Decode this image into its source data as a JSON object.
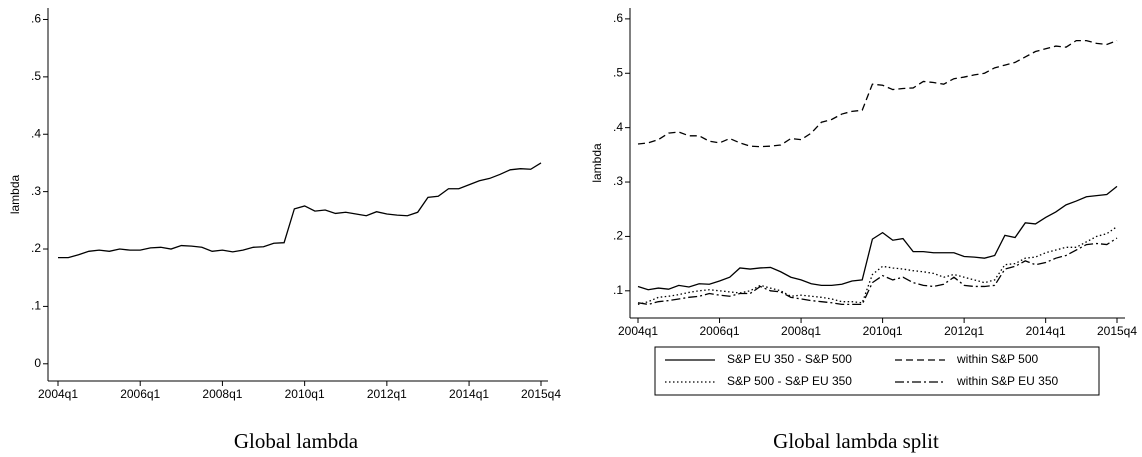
{
  "chart_data": [
    {
      "type": "line",
      "title": "Global lambda",
      "ylabel": "lambda",
      "color": "#000000",
      "categories": [
        "2004q1",
        null,
        null,
        null,
        null,
        null,
        null,
        null,
        "2006q1",
        null,
        null,
        null,
        null,
        null,
        null,
        null,
        "2008q1",
        null,
        null,
        null,
        null,
        null,
        null,
        null,
        "2010q1",
        null,
        null,
        null,
        null,
        null,
        null,
        null,
        "2012q1",
        null,
        null,
        null,
        null,
        null,
        null,
        null,
        "2014q1",
        null,
        null,
        null,
        null,
        null,
        null,
        "2015q4"
      ],
      "values": [
        0.185,
        0.185,
        0.19,
        0.196,
        0.198,
        0.196,
        0.2,
        0.198,
        0.198,
        0.202,
        0.203,
        0.2,
        0.206,
        0.205,
        0.203,
        0.196,
        0.198,
        0.195,
        0.198,
        0.203,
        0.204,
        0.21,
        0.211,
        0.27,
        0.275,
        0.266,
        0.268,
        0.262,
        0.264,
        0.261,
        0.258,
        0.265,
        0.261,
        0.259,
        0.258,
        0.264,
        0.29,
        0.292,
        0.305,
        0.305,
        0.312,
        0.319,
        0.323,
        0.33,
        0.338,
        0.34,
        0.339,
        0.35
      ],
      "ylim": [
        -0.03,
        0.62
      ],
      "yticks": [
        0,
        {
          "value": 0.1,
          "label": ".1"
        },
        {
          "value": 0.2,
          "label": ".2"
        },
        {
          "value": 0.3,
          "label": ".3"
        },
        {
          "value": 0.4,
          "label": ".4"
        },
        {
          "value": 0.5,
          "label": ".5"
        },
        {
          "value": 0.6,
          "label": ".6"
        }
      ]
    },
    {
      "type": "line",
      "title": "Global lambda split",
      "ylabel": "lambda",
      "categories": [
        "2004q1",
        null,
        null,
        null,
        null,
        null,
        null,
        null,
        "2006q1",
        null,
        null,
        null,
        null,
        null,
        null,
        null,
        "2008q1",
        null,
        null,
        null,
        null,
        null,
        null,
        null,
        "2010q1",
        null,
        null,
        null,
        null,
        null,
        null,
        null,
        "2012q1",
        null,
        null,
        null,
        null,
        null,
        null,
        null,
        "2014q1",
        null,
        null,
        null,
        null,
        null,
        null,
        "2015q4"
      ],
      "series": [
        {
          "name": "S&P EU 350 - S&P 500",
          "color": "#000000",
          "dash": "solid",
          "values": [
            0.108,
            0.102,
            0.105,
            0.103,
            0.11,
            0.107,
            0.113,
            0.112,
            0.118,
            0.125,
            0.142,
            0.14,
            0.142,
            0.143,
            0.135,
            0.125,
            0.12,
            0.113,
            0.11,
            0.11,
            0.112,
            0.118,
            0.12,
            0.195,
            0.207,
            0.193,
            0.196,
            0.172,
            0.172,
            0.17,
            0.17,
            0.17,
            0.163,
            0.162,
            0.16,
            0.165,
            0.202,
            0.198,
            0.225,
            0.223,
            0.235,
            0.245,
            0.258,
            0.265,
            0.273,
            0.275,
            0.277,
            0.292
          ]
        },
        {
          "name": "within S&P 500",
          "color": "#000000",
          "dash": "dash",
          "values": [
            0.37,
            0.372,
            0.378,
            0.39,
            0.392,
            0.385,
            0.385,
            0.375,
            0.372,
            0.38,
            0.372,
            0.366,
            0.365,
            0.366,
            0.368,
            0.38,
            0.378,
            0.39,
            0.41,
            0.415,
            0.425,
            0.43,
            0.432,
            0.48,
            0.478,
            0.47,
            0.472,
            0.473,
            0.485,
            0.483,
            0.48,
            0.49,
            0.493,
            0.497,
            0.5,
            0.51,
            0.515,
            0.52,
            0.53,
            0.54,
            0.545,
            0.55,
            0.548,
            0.56,
            0.56,
            0.555,
            0.553,
            0.56
          ]
        },
        {
          "name": "S&P 500 - S&P EU 350",
          "color": "#000000",
          "dash": "dot",
          "values": [
            0.075,
            0.08,
            0.088,
            0.09,
            0.093,
            0.097,
            0.1,
            0.102,
            0.1,
            0.098,
            0.096,
            0.1,
            0.11,
            0.105,
            0.1,
            0.09,
            0.092,
            0.09,
            0.088,
            0.085,
            0.08,
            0.08,
            0.078,
            0.13,
            0.145,
            0.142,
            0.14,
            0.137,
            0.135,
            0.132,
            0.125,
            0.13,
            0.125,
            0.12,
            0.115,
            0.12,
            0.148,
            0.15,
            0.16,
            0.162,
            0.17,
            0.175,
            0.18,
            0.18,
            0.19,
            0.2,
            0.205,
            0.218
          ]
        },
        {
          "name": "within S&P EU 350",
          "color": "#000000",
          "dash": "dashdot",
          "values": [
            0.078,
            0.075,
            0.08,
            0.082,
            0.085,
            0.088,
            0.09,
            0.095,
            0.092,
            0.09,
            0.095,
            0.095,
            0.108,
            0.1,
            0.098,
            0.088,
            0.085,
            0.082,
            0.08,
            0.078,
            0.075,
            0.075,
            0.075,
            0.115,
            0.128,
            0.12,
            0.125,
            0.115,
            0.11,
            0.108,
            0.112,
            0.125,
            0.11,
            0.108,
            0.108,
            0.11,
            0.14,
            0.145,
            0.155,
            0.148,
            0.152,
            0.16,
            0.165,
            0.175,
            0.185,
            0.187,
            0.185,
            0.197
          ]
        }
      ],
      "ylim": [
        0.05,
        0.62
      ],
      "yticks": [
        {
          "value": 0.1,
          "label": ".1"
        },
        {
          "value": 0.2,
          "label": ".2"
        },
        {
          "value": 0.3,
          "label": ".3"
        },
        {
          "value": 0.4,
          "label": ".4"
        },
        {
          "value": 0.5,
          "label": ".5"
        },
        {
          "value": 0.6,
          "label": ".6"
        }
      ]
    }
  ]
}
